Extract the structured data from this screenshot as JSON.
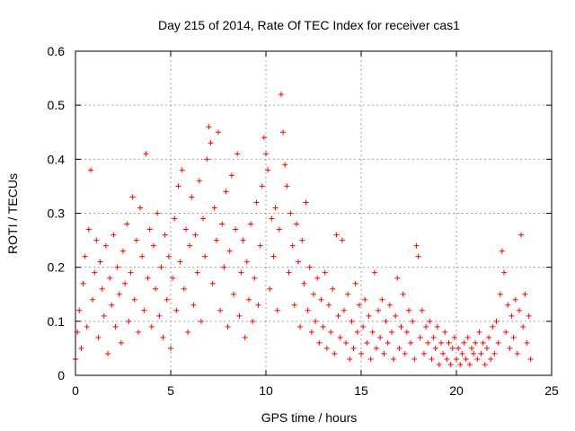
{
  "chart_data": {
    "type": "scatter",
    "title": "Day 215 of 2014, Rate Of TEC Index for receiver cas1",
    "xlabel": "GPS time / hours",
    "ylabel": "ROTI / TECUs",
    "xlim": [
      0,
      25
    ],
    "ylim": [
      0,
      0.6
    ],
    "xticks": [
      0,
      5,
      10,
      15,
      20,
      25
    ],
    "xtick_labels": [
      "0",
      "5",
      "10",
      "15",
      "20",
      "25"
    ],
    "yticks": [
      0,
      0.1,
      0.2,
      0.3,
      0.4,
      0.5,
      0.6
    ],
    "ytick_labels": [
      "0",
      "0.1",
      "0.2",
      "0.3",
      "0.4",
      "0.5",
      "0.6"
    ],
    "grid": true,
    "marker": "+",
    "color": "#ff0000",
    "series": [
      {
        "name": "ROTI",
        "points": [
          [
            0.0,
            0.03
          ],
          [
            0.1,
            0.08
          ],
          [
            0.2,
            0.12
          ],
          [
            0.3,
            0.05
          ],
          [
            0.4,
            0.17
          ],
          [
            0.5,
            0.22
          ],
          [
            0.6,
            0.09
          ],
          [
            0.7,
            0.27
          ],
          [
            0.8,
            0.38
          ],
          [
            0.9,
            0.14
          ],
          [
            1.0,
            0.19
          ],
          [
            1.1,
            0.25
          ],
          [
            1.2,
            0.07
          ],
          [
            1.3,
            0.21
          ],
          [
            1.4,
            0.16
          ],
          [
            1.5,
            0.11
          ],
          [
            1.6,
            0.24
          ],
          [
            1.7,
            0.04
          ],
          [
            1.8,
            0.18
          ],
          [
            1.9,
            0.13
          ],
          [
            2.0,
            0.26
          ],
          [
            2.1,
            0.09
          ],
          [
            2.2,
            0.2
          ],
          [
            2.3,
            0.15
          ],
          [
            2.4,
            0.06
          ],
          [
            2.5,
            0.23
          ],
          [
            2.6,
            0.17
          ],
          [
            2.7,
            0.28
          ],
          [
            2.8,
            0.1
          ],
          [
            2.9,
            0.19
          ],
          [
            3.0,
            0.33
          ],
          [
            3.1,
            0.14
          ],
          [
            3.2,
            0.25
          ],
          [
            3.3,
            0.08
          ],
          [
            3.4,
            0.31
          ],
          [
            3.5,
            0.22
          ],
          [
            3.6,
            0.12
          ],
          [
            3.7,
            0.41
          ],
          [
            3.8,
            0.18
          ],
          [
            3.9,
            0.27
          ],
          [
            4.0,
            0.09
          ],
          [
            4.1,
            0.24
          ],
          [
            4.2,
            0.16
          ],
          [
            4.3,
            0.3
          ],
          [
            4.4,
            0.11
          ],
          [
            4.5,
            0.2
          ],
          [
            4.6,
            0.07
          ],
          [
            4.7,
            0.26
          ],
          [
            4.8,
            0.14
          ],
          [
            4.9,
            0.22
          ],
          [
            5.0,
            0.05
          ],
          [
            5.1,
            0.18
          ],
          [
            5.2,
            0.29
          ],
          [
            5.3,
            0.12
          ],
          [
            5.4,
            0.35
          ],
          [
            5.5,
            0.21
          ],
          [
            5.6,
            0.38
          ],
          [
            5.7,
            0.16
          ],
          [
            5.8,
            0.27
          ],
          [
            5.9,
            0.08
          ],
          [
            6.0,
            0.24
          ],
          [
            6.1,
            0.33
          ],
          [
            6.2,
            0.13
          ],
          [
            6.3,
            0.26
          ],
          [
            6.4,
            0.19
          ],
          [
            6.5,
            0.36
          ],
          [
            6.6,
            0.1
          ],
          [
            6.7,
            0.29
          ],
          [
            6.8,
            0.22
          ],
          [
            6.9,
            0.4
          ],
          [
            7.0,
            0.46
          ],
          [
            7.1,
            0.43
          ],
          [
            7.2,
            0.17
          ],
          [
            7.3,
            0.31
          ],
          [
            7.4,
            0.25
          ],
          [
            7.5,
            0.45
          ],
          [
            7.6,
            0.12
          ],
          [
            7.7,
            0.28
          ],
          [
            7.8,
            0.2
          ],
          [
            7.9,
            0.34
          ],
          [
            8.0,
            0.09
          ],
          [
            8.1,
            0.23
          ],
          [
            8.2,
            0.37
          ],
          [
            8.3,
            0.15
          ],
          [
            8.4,
            0.27
          ],
          [
            8.5,
            0.41
          ],
          [
            8.6,
            0.11
          ],
          [
            8.7,
            0.19
          ],
          [
            8.8,
            0.25
          ],
          [
            8.9,
            0.07
          ],
          [
            9.0,
            0.21
          ],
          [
            9.1,
            0.14
          ],
          [
            9.2,
            0.28
          ],
          [
            9.3,
            0.1
          ],
          [
            9.4,
            0.18
          ],
          [
            9.5,
            0.32
          ],
          [
            9.6,
            0.13
          ],
          [
            9.7,
            0.24
          ],
          [
            9.8,
            0.35
          ],
          [
            9.9,
            0.44
          ],
          [
            10.0,
            0.41
          ],
          [
            10.1,
            0.38
          ],
          [
            10.2,
            0.16
          ],
          [
            10.3,
            0.29
          ],
          [
            10.4,
            0.22
          ],
          [
            10.5,
            0.31
          ],
          [
            10.6,
            0.12
          ],
          [
            10.7,
            0.27
          ],
          [
            10.8,
            0.52
          ],
          [
            10.9,
            0.45
          ],
          [
            11.0,
            0.39
          ],
          [
            11.1,
            0.35
          ],
          [
            11.2,
            0.19
          ],
          [
            11.3,
            0.3
          ],
          [
            11.4,
            0.24
          ],
          [
            11.5,
            0.13
          ],
          [
            11.6,
            0.28
          ],
          [
            11.7,
            0.21
          ],
          [
            11.8,
            0.09
          ],
          [
            11.9,
            0.25
          ],
          [
            12.0,
            0.17
          ],
          [
            12.1,
            0.32
          ],
          [
            12.2,
            0.12
          ],
          [
            12.3,
            0.2
          ],
          [
            12.4,
            0.08
          ],
          [
            12.5,
            0.15
          ],
          [
            12.6,
            0.1
          ],
          [
            12.7,
            0.18
          ],
          [
            12.8,
            0.06
          ],
          [
            12.9,
            0.14
          ],
          [
            13.0,
            0.09
          ],
          [
            13.1,
            0.19
          ],
          [
            13.2,
            0.05
          ],
          [
            13.3,
            0.13
          ],
          [
            13.4,
            0.08
          ],
          [
            13.5,
            0.16
          ],
          [
            13.6,
            0.04
          ],
          [
            13.7,
            0.26
          ],
          [
            13.8,
            0.11
          ],
          [
            13.9,
            0.07
          ],
          [
            14.0,
            0.25
          ],
          [
            14.1,
            0.12
          ],
          [
            14.2,
            0.06
          ],
          [
            14.3,
            0.15
          ],
          [
            14.4,
            0.03
          ],
          [
            14.5,
            0.1
          ],
          [
            14.6,
            0.05
          ],
          [
            14.7,
            0.17
          ],
          [
            14.8,
            0.08
          ],
          [
            14.9,
            0.13
          ],
          [
            15.0,
            0.04
          ],
          [
            15.1,
            0.09
          ],
          [
            15.2,
            0.14
          ],
          [
            15.3,
            0.06
          ],
          [
            15.4,
            0.11
          ],
          [
            15.5,
            0.03
          ],
          [
            15.6,
            0.08
          ],
          [
            15.7,
            0.19
          ],
          [
            15.8,
            0.05
          ],
          [
            15.9,
            0.12
          ],
          [
            16.0,
            0.07
          ],
          [
            16.1,
            0.14
          ],
          [
            16.2,
            0.04
          ],
          [
            16.3,
            0.1
          ],
          [
            16.4,
            0.06
          ],
          [
            16.5,
            0.13
          ],
          [
            16.6,
            0.08
          ],
          [
            16.7,
            0.03
          ],
          [
            16.8,
            0.11
          ],
          [
            16.9,
            0.18
          ],
          [
            17.0,
            0.05
          ],
          [
            17.1,
            0.09
          ],
          [
            17.2,
            0.15
          ],
          [
            17.3,
            0.04
          ],
          [
            17.4,
            0.08
          ],
          [
            17.5,
            0.12
          ],
          [
            17.6,
            0.06
          ],
          [
            17.7,
            0.1
          ],
          [
            17.8,
            0.03
          ],
          [
            17.9,
            0.24
          ],
          [
            18.0,
            0.22
          ],
          [
            18.1,
            0.07
          ],
          [
            18.2,
            0.12
          ],
          [
            18.3,
            0.04
          ],
          [
            18.4,
            0.09
          ],
          [
            18.5,
            0.06
          ],
          [
            18.6,
            0.1
          ],
          [
            18.7,
            0.03
          ],
          [
            18.8,
            0.07
          ],
          [
            18.9,
            0.05
          ],
          [
            19.0,
            0.09
          ],
          [
            19.1,
            0.02
          ],
          [
            19.2,
            0.06
          ],
          [
            19.3,
            0.04
          ],
          [
            19.4,
            0.08
          ],
          [
            19.5,
            0.03
          ],
          [
            19.6,
            0.06
          ],
          [
            19.7,
            0.02
          ],
          [
            19.8,
            0.05
          ],
          [
            19.9,
            0.07
          ],
          [
            20.0,
            0.03
          ],
          [
            20.1,
            0.05
          ],
          [
            20.2,
            0.02
          ],
          [
            20.3,
            0.04
          ],
          [
            20.4,
            0.06
          ],
          [
            20.5,
            0.03
          ],
          [
            20.6,
            0.07
          ],
          [
            20.7,
            0.02
          ],
          [
            20.8,
            0.05
          ],
          [
            20.9,
            0.04
          ],
          [
            21.0,
            0.06
          ],
          [
            21.1,
            0.03
          ],
          [
            21.2,
            0.08
          ],
          [
            21.3,
            0.04
          ],
          [
            21.4,
            0.06
          ],
          [
            21.5,
            0.02
          ],
          [
            21.6,
            0.05
          ],
          [
            21.7,
            0.07
          ],
          [
            21.8,
            0.03
          ],
          [
            21.9,
            0.09
          ],
          [
            22.0,
            0.04
          ],
          [
            22.1,
            0.1
          ],
          [
            22.2,
            0.06
          ],
          [
            22.3,
            0.15
          ],
          [
            22.4,
            0.23
          ],
          [
            22.5,
            0.19
          ],
          [
            22.6,
            0.08
          ],
          [
            22.7,
            0.13
          ],
          [
            22.8,
            0.05
          ],
          [
            22.9,
            0.11
          ],
          [
            23.0,
            0.07
          ],
          [
            23.1,
            0.14
          ],
          [
            23.2,
            0.04
          ],
          [
            23.3,
            0.12
          ],
          [
            23.4,
            0.26
          ],
          [
            23.5,
            0.09
          ],
          [
            23.6,
            0.15
          ],
          [
            23.7,
            0.06
          ],
          [
            23.8,
            0.11
          ],
          [
            23.9,
            0.03
          ]
        ]
      }
    ]
  }
}
